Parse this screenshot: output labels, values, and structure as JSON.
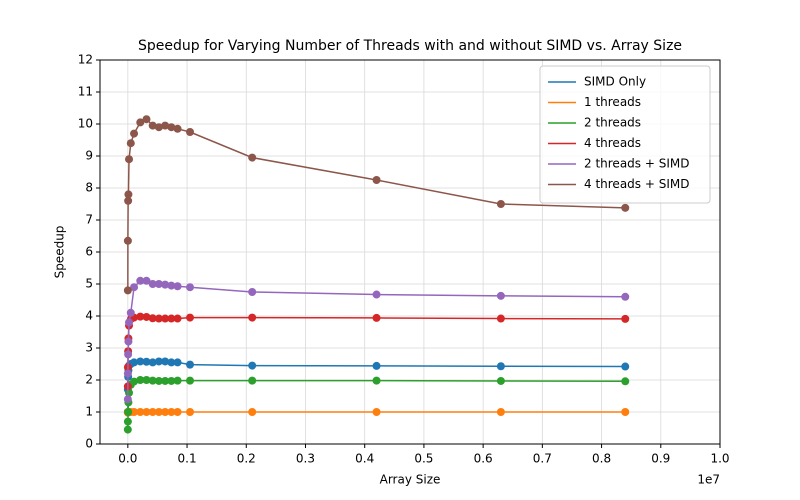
{
  "chart_data": {
    "type": "line",
    "title": "Speedup for Varying Number of Threads with and without SIMD vs. Array Size",
    "x_label": "Array Size",
    "y_label": "Speedup",
    "x_offset_label": "1e7",
    "x": [
      1e-05,
      0.0001,
      0.0005,
      0.001,
      0.002,
      0.005,
      0.0105,
      0.021,
      0.0315,
      0.042,
      0.0525,
      0.063,
      0.0735,
      0.084,
      0.105,
      0.21,
      0.42,
      0.63,
      0.84
    ],
    "series": [
      {
        "name": "SIMD Only",
        "color": "#1f77b4",
        "values": [
          1.0,
          1.7,
          2.1,
          2.3,
          2.45,
          2.5,
          2.55,
          2.58,
          2.57,
          2.55,
          2.58,
          2.58,
          2.55,
          2.55,
          2.48,
          2.45,
          2.44,
          2.43,
          2.42
        ]
      },
      {
        "name": "1 threads",
        "color": "#ff7f0e",
        "values": [
          0.98,
          1.0,
          1.0,
          1.0,
          1.0,
          1.0,
          1.0,
          1.0,
          1.0,
          1.0,
          1.0,
          1.0,
          1.0,
          1.0,
          1.0,
          1.0,
          1.0,
          1.0,
          1.0
        ]
      },
      {
        "name": "2 threads",
        "color": "#2ca02c",
        "values": [
          0.45,
          0.7,
          1.0,
          1.3,
          1.6,
          1.85,
          1.95,
          2.0,
          2.0,
          1.98,
          1.97,
          1.97,
          1.97,
          1.98,
          1.98,
          1.98,
          1.98,
          1.97,
          1.96
        ]
      },
      {
        "name": "4 threads",
        "color": "#d62728",
        "values": [
          1.8,
          2.4,
          2.9,
          3.3,
          3.7,
          3.9,
          3.95,
          3.98,
          3.97,
          3.93,
          3.92,
          3.92,
          3.92,
          3.92,
          3.95,
          3.95,
          3.94,
          3.92,
          3.91
        ]
      },
      {
        "name": "2 threads + SIMD",
        "color": "#9467bd",
        "values": [
          1.4,
          2.2,
          2.8,
          3.2,
          3.8,
          4.1,
          4.9,
          5.1,
          5.1,
          5.0,
          5.0,
          4.98,
          4.95,
          4.93,
          4.9,
          4.75,
          4.67,
          4.63,
          4.6
        ]
      },
      {
        "name": "4 threads + SIMD",
        "color": "#8c564b",
        "values": [
          4.8,
          6.35,
          7.6,
          7.8,
          8.9,
          9.4,
          9.7,
          10.05,
          10.15,
          9.95,
          9.9,
          9.95,
          9.9,
          9.85,
          9.75,
          8.95,
          8.25,
          7.5,
          7.38
        ]
      }
    ],
    "xlim": [
      -0.047,
      1.0
    ],
    "xticks": [
      {
        "value": 0,
        "label": "0.0"
      },
      0.1,
      0.2,
      0.3,
      0.4,
      0.5,
      0.6,
      0.7,
      0.8,
      0.9,
      {
        "value": 1,
        "label": "1.0"
      }
    ],
    "ylim": [
      0,
      12
    ],
    "yticks": [
      0,
      1,
      2,
      3,
      4,
      5,
      6,
      7,
      8,
      9,
      10,
      11,
      12
    ],
    "grid": true,
    "legend": "upper-right"
  }
}
